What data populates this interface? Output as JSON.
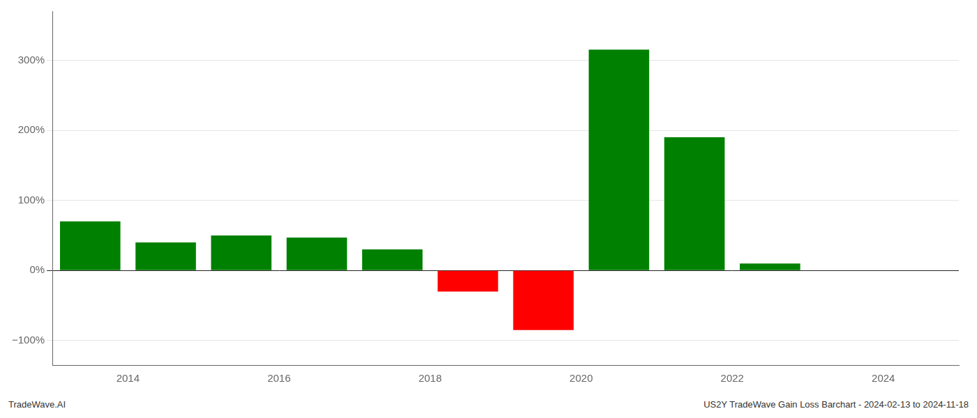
{
  "chart_data": {
    "type": "bar",
    "x": [
      2013.5,
      2014.5,
      2015.5,
      2016.5,
      2017.5,
      2018.5,
      2019.5,
      2020.5,
      2021.5,
      2022.5
    ],
    "values": [
      70,
      40,
      50,
      47,
      30,
      -30,
      -85,
      315,
      190,
      10
    ],
    "colors": [
      "#008000",
      "#008000",
      "#008000",
      "#008000",
      "#008000",
      "#ff0000",
      "#ff0000",
      "#008000",
      "#008000",
      "#008000"
    ],
    "xlim": [
      2013.0,
      2025.0
    ],
    "xticks": [
      2014,
      2016,
      2018,
      2020,
      2022,
      2024
    ],
    "ylim": [
      -135,
      370
    ],
    "yticks": [
      {
        "value": -100,
        "label": "−100%"
      },
      {
        "value": 0,
        "label": "0%"
      },
      {
        "value": 100,
        "label": "100%"
      },
      {
        "value": 200,
        "label": "200%"
      },
      {
        "value": 300,
        "label": "300%"
      }
    ],
    "grid": true,
    "annotations": [
      "TradeWave.AI",
      "US2Y TradeWave Gain Loss Barchart - 2024-02-13 to 2024-11-18"
    ]
  }
}
